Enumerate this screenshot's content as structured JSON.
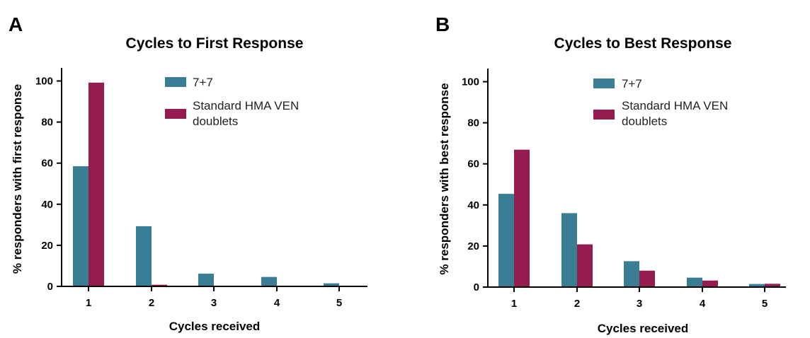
{
  "colors": {
    "series_7_7": "#3a7e96",
    "series_standard": "#941c4f"
  },
  "chart_data": [
    {
      "panel": "A",
      "type": "bar",
      "title": "Cycles to First Response",
      "xlabel": "Cycles received",
      "ylabel": "% responders with first response",
      "ylim": [
        0,
        105
      ],
      "yticks": [
        0,
        20,
        40,
        60,
        80,
        100
      ],
      "categories": [
        "1",
        "2",
        "3",
        "4",
        "5"
      ],
      "series": [
        {
          "name": "7+7",
          "color": "#3a7e96",
          "values": [
            58.5,
            29.3,
            6.2,
            4.6,
            1.5
          ]
        },
        {
          "name": "Standard HMA VEN doublets",
          "color": "#941c4f",
          "values": [
            99.2,
            0.8,
            0,
            0,
            0
          ]
        }
      ],
      "legend": "top-center"
    },
    {
      "panel": "B",
      "type": "bar",
      "title": "Cycles to Best Response",
      "xlabel": "Cycles received",
      "ylabel": "% responders with best response",
      "ylim": [
        0,
        105
      ],
      "yticks": [
        0,
        20,
        40,
        60,
        80,
        100
      ],
      "categories": [
        "1",
        "2",
        "3",
        "4",
        "5"
      ],
      "series": [
        {
          "name": "7+7",
          "color": "#3a7e96",
          "values": [
            45.4,
            36.0,
            12.6,
            4.6,
            1.5
          ]
        },
        {
          "name": "Standard HMA VEN doublets",
          "color": "#941c4f",
          "values": [
            66.9,
            20.8,
            8.0,
            3.2,
            1.6
          ]
        }
      ],
      "legend": "top-center"
    }
  ]
}
